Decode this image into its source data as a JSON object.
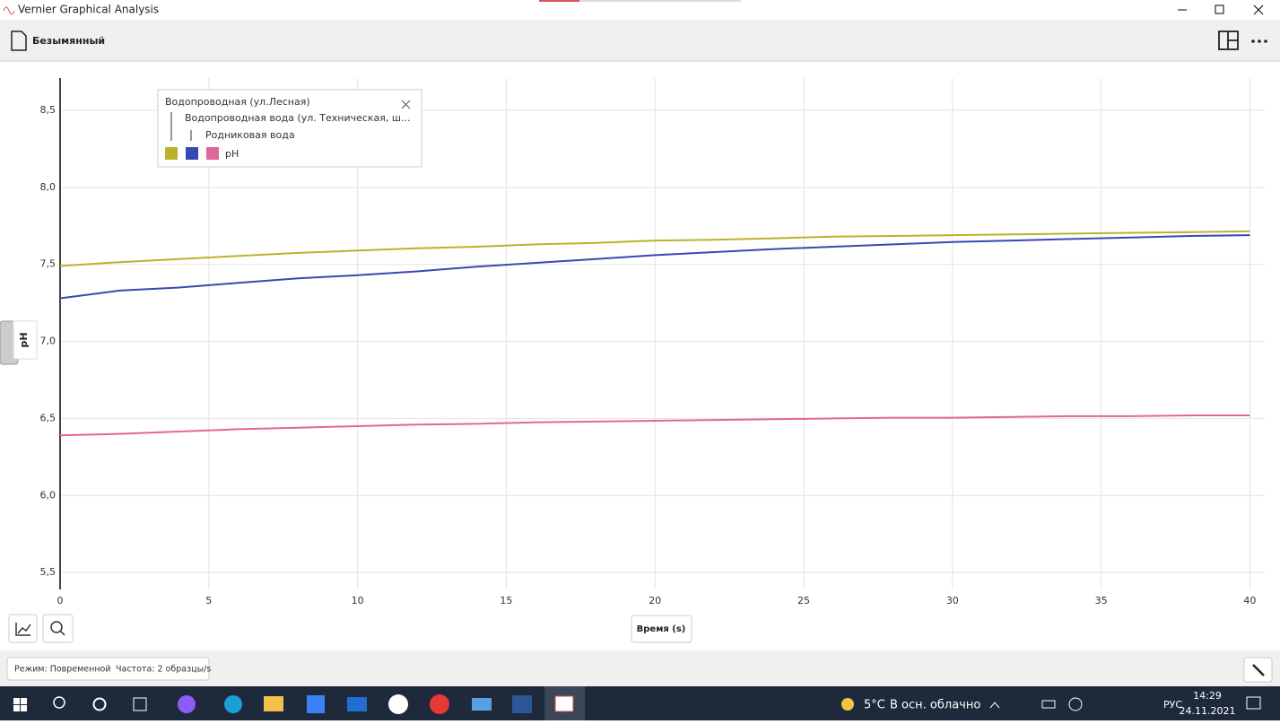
{
  "window": {
    "title": "Vernier Graphical Analysis"
  },
  "document": {
    "title": "Безымянный"
  },
  "chart_data": {
    "type": "line",
    "x_label": "Время (s)",
    "y_label": "pH",
    "x": [
      0,
      2,
      4,
      6,
      8,
      10,
      12,
      14,
      16,
      18,
      20,
      22,
      24,
      26,
      28,
      30,
      32,
      34,
      36,
      38,
      40
    ],
    "series": [
      {
        "name": "Водопроводная (ул.Лесная)",
        "color": "#bab22c",
        "values": [
          7.49,
          7.515,
          7.535,
          7.555,
          7.575,
          7.59,
          7.605,
          7.615,
          7.63,
          7.64,
          7.655,
          7.66,
          7.67,
          7.68,
          7.685,
          7.69,
          7.695,
          7.7,
          7.705,
          7.71,
          7.715
        ]
      },
      {
        "name": "Водопроводная вода (ул. Техническая, ш...",
        "color": "#3a48b2",
        "values": [
          7.28,
          7.33,
          7.35,
          7.38,
          7.41,
          7.43,
          7.455,
          7.485,
          7.51,
          7.535,
          7.56,
          7.58,
          7.6,
          7.615,
          7.63,
          7.645,
          7.655,
          7.665,
          7.675,
          7.685,
          7.69
        ]
      },
      {
        "name": "Родниковая вода",
        "color": "#e0669b",
        "values": [
          6.39,
          6.4,
          6.415,
          6.43,
          6.44,
          6.45,
          6.46,
          6.465,
          6.475,
          6.48,
          6.485,
          6.49,
          6.495,
          6.5,
          6.505,
          6.505,
          6.51,
          6.515,
          6.515,
          6.52,
          6.52
        ]
      }
    ],
    "xlim": [
      0,
      40.5
    ],
    "xticks": [
      0,
      5,
      10,
      15,
      20,
      25,
      30,
      35,
      40
    ],
    "ylim": [
      5.39,
      8.71
    ],
    "yticks": [
      {
        "value": 5.5,
        "label": "5,5"
      },
      {
        "value": 6,
        "label": "6,0"
      },
      {
        "value": 6.5,
        "label": "6,5"
      },
      {
        "value": 7,
        "label": "7,0"
      },
      {
        "value": 7.5,
        "label": "7,5"
      },
      {
        "value": 8,
        "label": "8,0"
      },
      {
        "value": 8.5,
        "label": "8,5"
      }
    ],
    "grid": true
  },
  "status": {
    "mode": "Режим: Повременной",
    "rate": "Частота: 2 образцы/s"
  },
  "taskbar": {
    "temperature": "5°C",
    "weather": "В осн. облачно",
    "language": "РУС",
    "time": "14:29",
    "date": "24.11.2021"
  }
}
